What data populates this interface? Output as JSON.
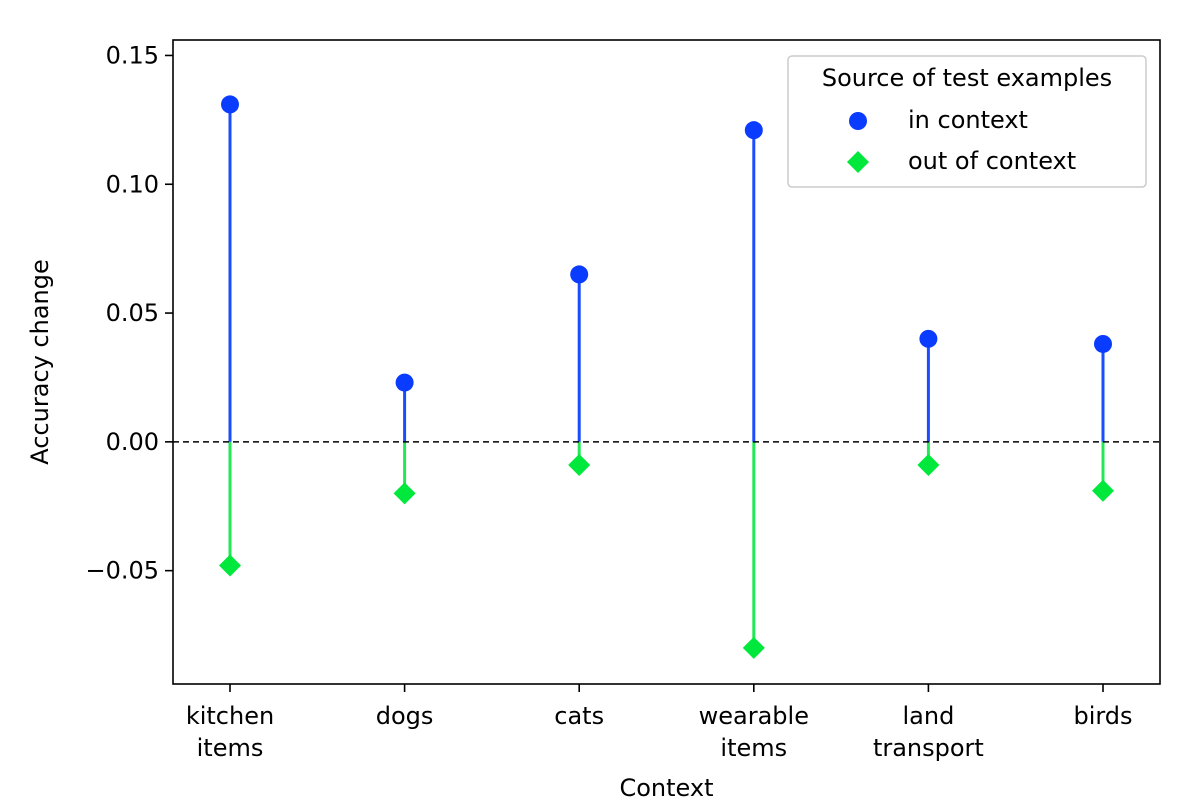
{
  "chart_data": {
    "type": "scatter",
    "categories": [
      [
        "kitchen",
        "items"
      ],
      [
        "dogs"
      ],
      [
        "cats"
      ],
      [
        "wearable",
        "items"
      ],
      [
        "land",
        "transport"
      ],
      [
        "birds"
      ]
    ],
    "series": [
      {
        "name": "in context",
        "marker": "circle",
        "color": "#0a3cff",
        "stem_color": "#1a4dff",
        "values": [
          0.131,
          0.023,
          0.065,
          0.121,
          0.04,
          0.038
        ]
      },
      {
        "name": "out of context",
        "marker": "diamond",
        "color": "#00e83c",
        "stem_color": "#22e855",
        "values": [
          -0.048,
          -0.02,
          -0.009,
          -0.08,
          -0.009,
          -0.019
        ]
      }
    ],
    "xlabel": "Context",
    "ylabel": "Accuracy change",
    "ylim": [
      -0.094,
      0.156
    ],
    "yticks": [
      -0.05,
      0.0,
      0.05,
      0.1,
      0.15
    ],
    "ytick_labels": [
      "−0.05",
      "0.00",
      "0.05",
      "0.10",
      "0.15"
    ],
    "baseline": 0.0,
    "legend": {
      "title": "Source of test examples",
      "placement": "top-right"
    },
    "grid": false
  }
}
